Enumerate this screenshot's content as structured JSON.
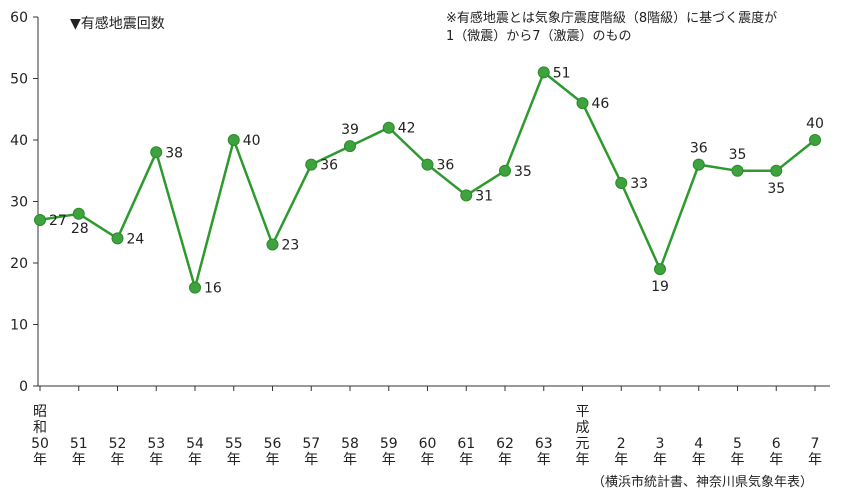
{
  "chart_data": {
    "type": "line",
    "title": "▼有感地震回数",
    "note_lines": [
      "※有感地震とは気象庁震度階級（8階級）に基づく震度が",
      "1（微震）から7（激震）のもの"
    ],
    "source": "（横浜市統計書、神奈川県気象年表）",
    "categories": [
      [
        "昭",
        "和",
        "50",
        "年"
      ],
      [
        "51",
        "年"
      ],
      [
        "52",
        "年"
      ],
      [
        "53",
        "年"
      ],
      [
        "54",
        "年"
      ],
      [
        "55",
        "年"
      ],
      [
        "56",
        "年"
      ],
      [
        "57",
        "年"
      ],
      [
        "58",
        "年"
      ],
      [
        "59",
        "年"
      ],
      [
        "60",
        "年"
      ],
      [
        "61",
        "年"
      ],
      [
        "62",
        "年"
      ],
      [
        "63",
        "年"
      ],
      [
        "平",
        "成",
        "元",
        "年"
      ],
      [
        "2",
        "年"
      ],
      [
        "3",
        "年"
      ],
      [
        "4",
        "年"
      ],
      [
        "5",
        "年"
      ],
      [
        "6",
        "年"
      ],
      [
        "7",
        "年"
      ]
    ],
    "values": [
      27,
      28,
      24,
      38,
      16,
      40,
      23,
      36,
      39,
      42,
      36,
      31,
      35,
      51,
      46,
      33,
      19,
      36,
      35,
      35,
      40
    ],
    "label_positions": [
      "right",
      "below-right",
      "right",
      "right",
      "right",
      "right",
      "right",
      "right",
      "above",
      "right",
      "right",
      "right",
      "right",
      "right",
      "right",
      "right",
      "below",
      "above",
      "above",
      "below",
      "above"
    ],
    "yticks": [
      0,
      10,
      20,
      30,
      40,
      50,
      60
    ],
    "ylim": [
      0,
      60
    ],
    "grid": false,
    "line_color": "#2e9a2e",
    "marker_color": "#3ea33e"
  }
}
